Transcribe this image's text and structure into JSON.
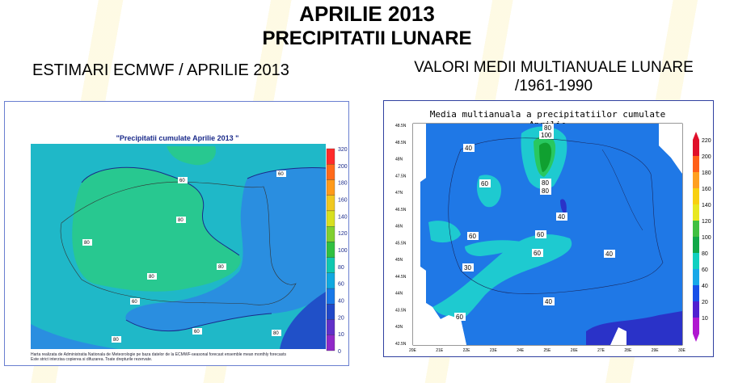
{
  "page": {
    "title_line1": "APRILIE 2013",
    "title_line2": "PRECIPITATII LUNARE",
    "subtitle_left": "ESTIMARI ECMWF / APRILIE 2013",
    "subtitle_right_line1": "VALORI MEDII MULTIANUALE LUNARE",
    "subtitle_right_line2": "/1961-1990"
  },
  "left_map": {
    "title": "\"Precipitatii cumulate Aprilie 2013 \"",
    "footnote_line1": "Harta realizata de Administratia Nationala de Meteorologie pe baza datelor de la ECMWF-seasonal forecast ensemble mean monthly forecasts",
    "footnote_line2": "Este strict interzisa copierea si difuzarea. Toate drepturile rezervate.",
    "legend_ticks": [
      "320",
      "200",
      "180",
      "160",
      "140",
      "120",
      "100",
      "80",
      "60",
      "40",
      "20",
      "10",
      "0"
    ],
    "legend_colors": [
      "#ff2b2b",
      "#ff6a1a",
      "#ff9a1a",
      "#f0c820",
      "#d8e020",
      "#80d030",
      "#30c040",
      "#10c8b0",
      "#10a8e0",
      "#1878e8",
      "#2048c8",
      "#6030c8",
      "#9028c8"
    ],
    "contour_labels": [
      "60",
      "80",
      "80",
      "80",
      "80",
      "80",
      "60",
      "60",
      "80",
      "60"
    ]
  },
  "right_map": {
    "title": "Media multianuala a precipitatiilor cumulate Aprilie",
    "lat_labels": [
      "48.5N",
      "48.5N",
      "48N",
      "47.5N",
      "47N",
      "46.5N",
      "46N",
      "45.5N",
      "45N",
      "44.5N",
      "44N",
      "43.5N",
      "43N",
      "42.5N"
    ],
    "lon_labels": [
      "20E",
      "21E",
      "22E",
      "23E",
      "24E",
      "25E",
      "26E",
      "27E",
      "28E",
      "29E",
      "30E"
    ],
    "legend_ticks": [
      "220",
      "200",
      "180",
      "160",
      "140",
      "120",
      "100",
      "80",
      "60",
      "40",
      "20",
      "10"
    ],
    "legend_colors": [
      "#e0102a",
      "#ff6018",
      "#ffa020",
      "#f8d010",
      "#e8e820",
      "#40c040",
      "#10a848",
      "#10d0c0",
      "#18a8e8",
      "#1850e8",
      "#5020d0",
      "#b018d0"
    ],
    "contour_labels": [
      "40",
      "80",
      "100",
      "60",
      "80",
      "80",
      "40",
      "60",
      "60",
      "60",
      "30",
      "40",
      "40",
      "60"
    ]
  }
}
